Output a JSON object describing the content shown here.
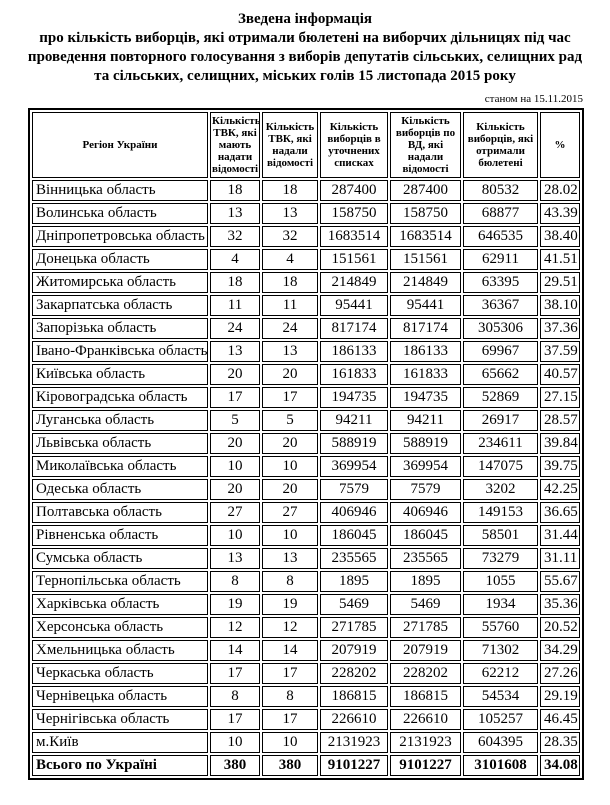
{
  "title": {
    "line1": "Зведена інформація",
    "line2": "про кількість виборців, які отримали бюлетені на виборчих дільницях під час",
    "line3": "проведення повторного голосування з виборів депутатів сільських, селищних рад",
    "line4": "та сільських, селищних, міських голів 15 листопада 2015 року"
  },
  "as_of": "станом на 15.11.2015",
  "table": {
    "headers": [
      "Регіон України",
      "Кількість ТВК, які мають надати відомості",
      "Кількість ТВК, які надали відомості",
      "Кількість виборців в уточнених списках",
      "Кількість виборців по ВД, які надали відомості",
      "Кількість виборців, які отримали бюлетені",
      "%"
    ],
    "rows": [
      [
        "Вінницька область",
        "18",
        "18",
        "287400",
        "287400",
        "80532",
        "28.02"
      ],
      [
        "Волинська область",
        "13",
        "13",
        "158750",
        "158750",
        "68877",
        "43.39"
      ],
      [
        "Дніпропетровська область",
        "32",
        "32",
        "1683514",
        "1683514",
        "646535",
        "38.40"
      ],
      [
        "Донецька область",
        "4",
        "4",
        "151561",
        "151561",
        "62911",
        "41.51"
      ],
      [
        "Житомирська область",
        "18",
        "18",
        "214849",
        "214849",
        "63395",
        "29.51"
      ],
      [
        "Закарпатська область",
        "11",
        "11",
        "95441",
        "95441",
        "36367",
        "38.10"
      ],
      [
        "Запорізька область",
        "24",
        "24",
        "817174",
        "817174",
        "305306",
        "37.36"
      ],
      [
        "Івано-Франківська область",
        "13",
        "13",
        "186133",
        "186133",
        "69967",
        "37.59"
      ],
      [
        "Київська область",
        "20",
        "20",
        "161833",
        "161833",
        "65662",
        "40.57"
      ],
      [
        "Кіровоградська область",
        "17",
        "17",
        "194735",
        "194735",
        "52869",
        "27.15"
      ],
      [
        "Луганська область",
        "5",
        "5",
        "94211",
        "94211",
        "26917",
        "28.57"
      ],
      [
        "Львівська область",
        "20",
        "20",
        "588919",
        "588919",
        "234611",
        "39.84"
      ],
      [
        "Миколаївська область",
        "10",
        "10",
        "369954",
        "369954",
        "147075",
        "39.75"
      ],
      [
        "Одеська область",
        "20",
        "20",
        "7579",
        "7579",
        "3202",
        "42.25"
      ],
      [
        "Полтавська область",
        "27",
        "27",
        "406946",
        "406946",
        "149153",
        "36.65"
      ],
      [
        "Рівненська область",
        "10",
        "10",
        "186045",
        "186045",
        "58501",
        "31.44"
      ],
      [
        "Сумська область",
        "13",
        "13",
        "235565",
        "235565",
        "73279",
        "31.11"
      ],
      [
        "Тернопільська область",
        "8",
        "8",
        "1895",
        "1895",
        "1055",
        "55.67"
      ],
      [
        "Харківська область",
        "19",
        "19",
        "5469",
        "5469",
        "1934",
        "35.36"
      ],
      [
        "Херсонська область",
        "12",
        "12",
        "271785",
        "271785",
        "55760",
        "20.52"
      ],
      [
        "Хмельницька область",
        "14",
        "14",
        "207919",
        "207919",
        "71302",
        "34.29"
      ],
      [
        "Черкаська область",
        "17",
        "17",
        "228202",
        "228202",
        "62212",
        "27.26"
      ],
      [
        "Чернівецька область",
        "8",
        "8",
        "186815",
        "186815",
        "54534",
        "29.19"
      ],
      [
        "Чернігівська область",
        "17",
        "17",
        "226610",
        "226610",
        "105257",
        "46.45"
      ],
      [
        "м.Київ",
        "10",
        "10",
        "2131923",
        "2131923",
        "604395",
        "28.35"
      ]
    ],
    "total": [
      "Всього по Україні",
      "380",
      "380",
      "9101227",
      "9101227",
      "3101608",
      "34.08"
    ]
  }
}
